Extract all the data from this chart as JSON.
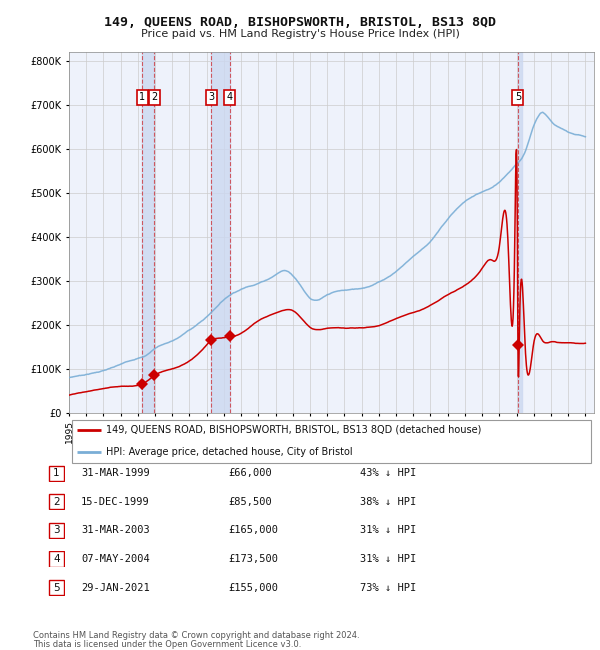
{
  "title": "149, QUEENS ROAD, BISHOPSWORTH, BRISTOL, BS13 8QD",
  "subtitle": "Price paid vs. HM Land Registry's House Price Index (HPI)",
  "legend_label_red": "149, QUEENS ROAD, BISHOPSWORTH, BRISTOL, BS13 8QD (detached house)",
  "legend_label_blue": "HPI: Average price, detached house, City of Bristol",
  "footer1": "Contains HM Land Registry data © Crown copyright and database right 2024.",
  "footer2": "This data is licensed under the Open Government Licence v3.0.",
  "purchases": [
    {
      "id": 1,
      "date_label": "31-MAR-1999",
      "date_num": 1999.25,
      "price": 66000,
      "pct": "43% ↓ HPI"
    },
    {
      "id": 2,
      "date_label": "15-DEC-1999",
      "date_num": 1999.96,
      "price": 85500,
      "pct": "38% ↓ HPI"
    },
    {
      "id": 3,
      "date_label": "31-MAR-2003",
      "date_num": 2003.25,
      "price": 165000,
      "pct": "31% ↓ HPI"
    },
    {
      "id": 4,
      "date_label": "07-MAY-2004",
      "date_num": 2004.35,
      "price": 173500,
      "pct": "31% ↓ HPI"
    },
    {
      "id": 5,
      "date_label": "29-JAN-2021",
      "date_num": 2021.08,
      "price": 155000,
      "pct": "73% ↓ HPI"
    }
  ],
  "ylim": [
    0,
    820000
  ],
  "yticks": [
    0,
    100000,
    200000,
    300000,
    400000,
    500000,
    600000,
    700000,
    800000
  ],
  "xlim": [
    1995.0,
    2025.5
  ],
  "xticks": [
    1995,
    1996,
    1997,
    1998,
    1999,
    2000,
    2001,
    2002,
    2003,
    2004,
    2005,
    2006,
    2007,
    2008,
    2009,
    2010,
    2011,
    2012,
    2013,
    2014,
    2015,
    2016,
    2017,
    2018,
    2019,
    2020,
    2021,
    2022,
    2023,
    2024,
    2025
  ],
  "background_color": "#ffffff",
  "plot_bg_color": "#eef2fb",
  "grid_color": "#cccccc",
  "red_line_color": "#cc0000",
  "blue_line_color": "#7aaed6",
  "dashed_color": "#cc0000",
  "shade_color": "#ccd8f0"
}
